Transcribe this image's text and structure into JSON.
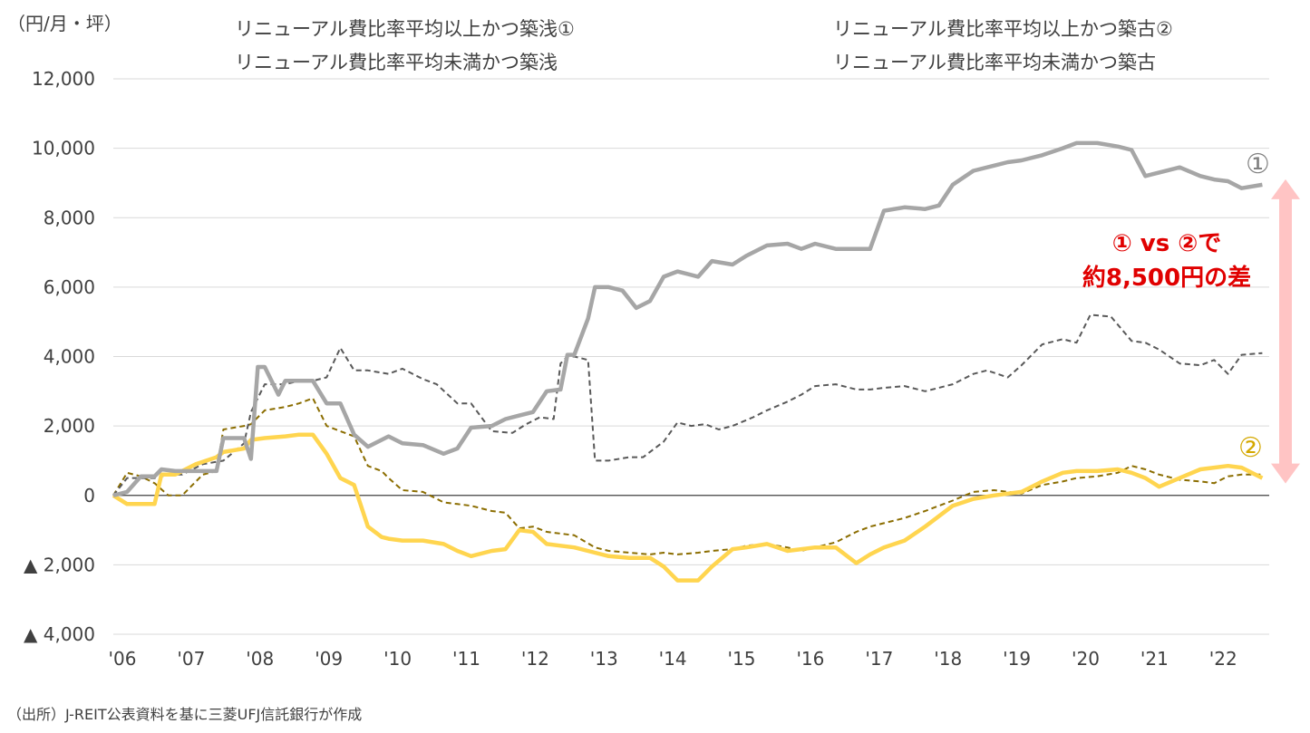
{
  "unit_label": "（円/月・坪）",
  "source": "（出所）J-REIT公表資料を基に三菱UFJ信託銀行が作成",
  "annotation": {
    "line1": "① vs ②で",
    "line2": "約8,500円の差",
    "color": "#e00000",
    "arrow_color": "#ffc4c4"
  },
  "markers": {
    "series1": "①",
    "series2": "②"
  },
  "colors": {
    "series1": "#a6a6a6",
    "series2": "#ffd54f",
    "series3": "#595959",
    "series4": "#8b6d00",
    "axis": "#404040",
    "grid": "#d9d9d9"
  },
  "chart_data": {
    "type": "line",
    "title": "",
    "xlabel": "",
    "ylabel": "（円/月・坪）",
    "ylim": [
      -4000,
      12000
    ],
    "yticks": [
      {
        "value": 12000,
        "label": "12,000"
      },
      {
        "value": 10000,
        "label": "10,000"
      },
      {
        "value": 8000,
        "label": "8,000"
      },
      {
        "value": 6000,
        "label": "6,000"
      },
      {
        "value": 4000,
        "label": "4,000"
      },
      {
        "value": 2000,
        "label": "2,000"
      },
      {
        "value": 0,
        "label": "0"
      },
      {
        "value": -2000,
        "label": "▲ 2,000"
      },
      {
        "value": -4000,
        "label": "▲ 4,000"
      }
    ],
    "xlim": [
      2006.0,
      2022.8
    ],
    "xticks": [
      {
        "value": 2006,
        "label": "'06"
      },
      {
        "value": 2007,
        "label": "'07"
      },
      {
        "value": 2008,
        "label": "'08"
      },
      {
        "value": 2009,
        "label": "'09"
      },
      {
        "value": 2010,
        "label": "'10"
      },
      {
        "value": 2011,
        "label": "'11"
      },
      {
        "value": 2012,
        "label": "'12"
      },
      {
        "value": 2013,
        "label": "'13"
      },
      {
        "value": 2014,
        "label": "'14"
      },
      {
        "value": 2015,
        "label": "'15"
      },
      {
        "value": 2016,
        "label": "'16"
      },
      {
        "value": 2017,
        "label": "'17"
      },
      {
        "value": 2018,
        "label": "'18"
      },
      {
        "value": 2019,
        "label": "'19"
      },
      {
        "value": 2020,
        "label": "'20"
      },
      {
        "value": 2021,
        "label": "'21"
      },
      {
        "value": 2022,
        "label": "'22"
      }
    ],
    "series": [
      {
        "name": "リニューアル費比率平均以上かつ築浅①",
        "style": "solid-thick",
        "x": [
          2006.0,
          2006.2,
          2006.4,
          2006.6,
          2006.7,
          2006.9,
          2007.2,
          2007.5,
          2007.6,
          2007.9,
          2008.0,
          2008.1,
          2008.2,
          2008.4,
          2008.5,
          2008.7,
          2008.9,
          2009.1,
          2009.3,
          2009.5,
          2009.7,
          2010.0,
          2010.2,
          2010.5,
          2010.8,
          2011.0,
          2011.2,
          2011.5,
          2011.7,
          2011.9,
          2012.1,
          2012.3,
          2012.5,
          2012.6,
          2012.7,
          2012.9,
          2013.0,
          2013.2,
          2013.4,
          2013.6,
          2013.8,
          2014.0,
          2014.2,
          2014.5,
          2014.7,
          2015.0,
          2015.2,
          2015.5,
          2015.8,
          2016.0,
          2016.2,
          2016.5,
          2016.8,
          2017.0,
          2017.2,
          2017.5,
          2017.8,
          2018.0,
          2018.2,
          2018.5,
          2018.8,
          2019.0,
          2019.2,
          2019.5,
          2019.8,
          2020.0,
          2020.3,
          2020.6,
          2020.8,
          2021.0,
          2021.2,
          2021.5,
          2021.8,
          2022.0,
          2022.2,
          2022.4,
          2022.7
        ],
        "values": [
          0,
          100,
          550,
          550,
          750,
          700,
          700,
          700,
          1650,
          1650,
          1050,
          3700,
          3700,
          2900,
          3300,
          3300,
          3300,
          2650,
          2650,
          1750,
          1400,
          1700,
          1500,
          1450,
          1200,
          1350,
          1950,
          2000,
          2200,
          2300,
          2400,
          3000,
          3050,
          4050,
          4050,
          5100,
          6000,
          6000,
          5900,
          5400,
          5600,
          6300,
          6450,
          6300,
          6750,
          6650,
          6900,
          7200,
          7250,
          7100,
          7250,
          7100,
          7100,
          7100,
          8200,
          8300,
          8250,
          8350,
          8950,
          9350,
          9500,
          9600,
          9650,
          9800,
          10000,
          10150,
          10150,
          10050,
          9950,
          9200,
          9300,
          9450,
          9200,
          9100,
          9050,
          8850,
          8950
        ]
      },
      {
        "name": "リニューアル費比率平均以上かつ築古②",
        "style": "solid-thick",
        "x": [
          2006.0,
          2006.2,
          2006.4,
          2006.6,
          2006.7,
          2006.9,
          2007.2,
          2007.5,
          2007.6,
          2007.9,
          2008.0,
          2008.2,
          2008.5,
          2008.7,
          2008.9,
          2009.1,
          2009.3,
          2009.5,
          2009.7,
          2009.9,
          2010.0,
          2010.2,
          2010.5,
          2010.8,
          2011.0,
          2011.2,
          2011.5,
          2011.7,
          2011.9,
          2012.1,
          2012.3,
          2012.5,
          2012.7,
          2013.0,
          2013.2,
          2013.5,
          2013.8,
          2014.0,
          2014.2,
          2014.5,
          2014.7,
          2015.0,
          2015.2,
          2015.5,
          2015.8,
          2016.0,
          2016.2,
          2016.5,
          2016.8,
          2017.0,
          2017.2,
          2017.5,
          2017.8,
          2018.0,
          2018.2,
          2018.5,
          2018.8,
          2019.0,
          2019.2,
          2019.5,
          2019.8,
          2020.0,
          2020.3,
          2020.6,
          2020.8,
          2021.0,
          2021.2,
          2021.5,
          2021.8,
          2022.0,
          2022.2,
          2022.4,
          2022.7
        ],
        "values": [
          0,
          -250,
          -250,
          -250,
          600,
          600,
          900,
          1100,
          1250,
          1350,
          1600,
          1650,
          1700,
          1750,
          1750,
          1200,
          500,
          300,
          -900,
          -1200,
          -1250,
          -1300,
          -1300,
          -1400,
          -1600,
          -1750,
          -1600,
          -1550,
          -1000,
          -1050,
          -1400,
          -1450,
          -1500,
          -1650,
          -1750,
          -1800,
          -1800,
          -2050,
          -2450,
          -2450,
          -2050,
          -1550,
          -1500,
          -1400,
          -1600,
          -1550,
          -1500,
          -1500,
          -1950,
          -1700,
          -1500,
          -1300,
          -900,
          -600,
          -300,
          -100,
          0,
          50,
          100,
          400,
          650,
          700,
          700,
          750,
          650,
          500,
          250,
          500,
          750,
          800,
          850,
          800,
          500
        ]
      },
      {
        "name": "リニューアル費比率平均未満かつ築浅",
        "style": "dashed",
        "x": [
          2006.0,
          2006.2,
          2006.4,
          2006.6,
          2006.8,
          2007.0,
          2007.3,
          2007.6,
          2007.9,
          2008.0,
          2008.2,
          2008.5,
          2008.7,
          2008.9,
          2009.1,
          2009.3,
          2009.5,
          2009.7,
          2010.0,
          2010.2,
          2010.5,
          2010.7,
          2011.0,
          2011.2,
          2011.5,
          2011.8,
          2012.0,
          2012.2,
          2012.4,
          2012.5,
          2012.6,
          2012.7,
          2012.9,
          2013.0,
          2013.2,
          2013.5,
          2013.7,
          2014.0,
          2014.2,
          2014.4,
          2014.6,
          2014.8,
          2015.0,
          2015.3,
          2015.5,
          2015.8,
          2016.0,
          2016.2,
          2016.5,
          2016.8,
          2017.0,
          2017.2,
          2017.5,
          2017.8,
          2018.0,
          2018.2,
          2018.5,
          2018.7,
          2019.0,
          2019.2,
          2019.5,
          2019.8,
          2020.0,
          2020.2,
          2020.5,
          2020.8,
          2021.0,
          2021.2,
          2021.5,
          2021.8,
          2022.0,
          2022.2,
          2022.4,
          2022.7
        ],
        "values": [
          0,
          500,
          500,
          500,
          600,
          600,
          900,
          1000,
          1500,
          2400,
          3200,
          3200,
          3300,
          3300,
          3400,
          4250,
          3600,
          3600,
          3500,
          3650,
          3350,
          3200,
          2650,
          2650,
          1850,
          1800,
          2050,
          2250,
          2200,
          3800,
          4000,
          4000,
          3900,
          1000,
          1000,
          1100,
          1100,
          1550,
          2100,
          2000,
          2050,
          1900,
          2000,
          2250,
          2450,
          2700,
          2900,
          3150,
          3200,
          3050,
          3050,
          3100,
          3150,
          3000,
          3100,
          3200,
          3500,
          3600,
          3400,
          3750,
          4350,
          4500,
          4400,
          5200,
          5150,
          4450,
          4400,
          4200,
          3800,
          3750,
          3900,
          3500,
          4050,
          4100
        ]
      },
      {
        "name": "リニューアル費比率平均未満かつ築古",
        "style": "dashed",
        "x": [
          2006.0,
          2006.2,
          2006.4,
          2006.6,
          2006.8,
          2007.0,
          2007.3,
          2007.5,
          2007.6,
          2007.9,
          2008.0,
          2008.2,
          2008.5,
          2008.7,
          2008.9,
          2009.1,
          2009.3,
          2009.5,
          2009.7,
          2009.9,
          2010.0,
          2010.2,
          2010.5,
          2010.8,
          2011.0,
          2011.2,
          2011.5,
          2011.7,
          2011.9,
          2012.1,
          2012.3,
          2012.5,
          2012.7,
          2013.0,
          2013.2,
          2013.5,
          2013.8,
          2014.0,
          2014.2,
          2014.5,
          2014.7,
          2015.0,
          2015.2,
          2015.5,
          2015.8,
          2016.0,
          2016.2,
          2016.5,
          2016.8,
          2017.0,
          2017.2,
          2017.5,
          2017.8,
          2018.0,
          2018.2,
          2018.5,
          2018.8,
          2019.0,
          2019.2,
          2019.5,
          2019.8,
          2020.0,
          2020.3,
          2020.6,
          2020.8,
          2021.0,
          2021.2,
          2021.5,
          2021.8,
          2022.0,
          2022.2,
          2022.4,
          2022.7
        ],
        "values": [
          0,
          650,
          550,
          350,
          0,
          0,
          600,
          700,
          1900,
          2000,
          2050,
          2450,
          2550,
          2650,
          2800,
          2000,
          1850,
          1700,
          850,
          700,
          500,
          150,
          100,
          -200,
          -250,
          -300,
          -450,
          -500,
          -950,
          -900,
          -1050,
          -1100,
          -1150,
          -1500,
          -1600,
          -1650,
          -1700,
          -1650,
          -1700,
          -1650,
          -1600,
          -1550,
          -1450,
          -1400,
          -1500,
          -1600,
          -1500,
          -1350,
          -1050,
          -900,
          -800,
          -650,
          -450,
          -300,
          -150,
          100,
          150,
          100,
          50,
          300,
          400,
          500,
          550,
          650,
          850,
          750,
          600,
          450,
          400,
          350,
          550,
          600,
          600
        ]
      }
    ]
  }
}
